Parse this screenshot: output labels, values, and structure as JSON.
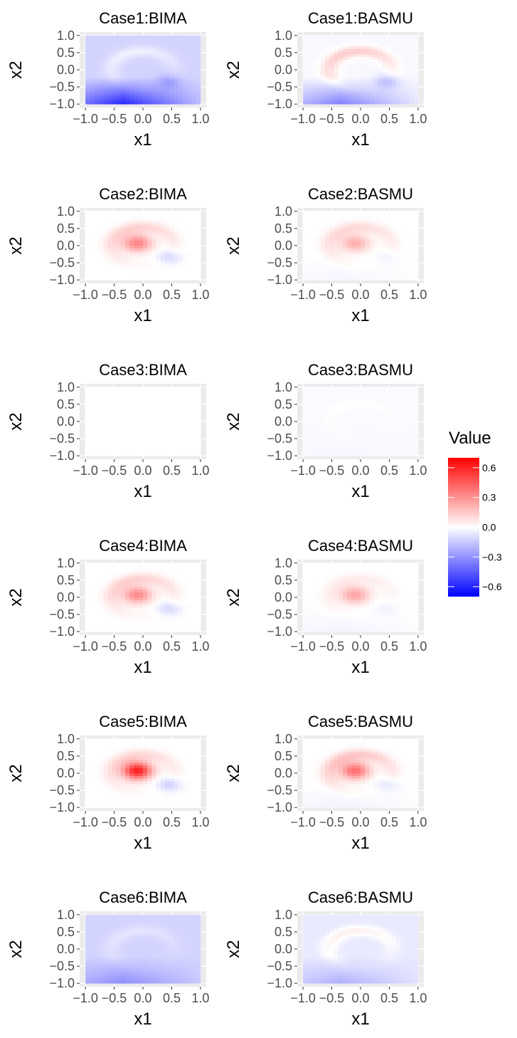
{
  "chart_data": {
    "type": "heatmap",
    "grid_type": "facet-grid",
    "rows": 6,
    "cols": 2,
    "xlim": [
      -1.1,
      1.1
    ],
    "ylim": [
      -1.1,
      1.1
    ],
    "x_ticks": [
      -1.0,
      -0.5,
      0.0,
      0.5,
      1.0
    ],
    "y_ticks": [
      -1.0,
      -0.5,
      0.0,
      0.5,
      1.0
    ],
    "x_tick_labels": [
      "−1.0",
      "−0.5",
      "0.0",
      "0.5",
      "1.0"
    ],
    "y_tick_labels": [
      "−1.0",
      "−0.5",
      "0.0",
      "0.5",
      "1.0"
    ],
    "xlabel": "x1",
    "ylabel": "x2",
    "legend": {
      "title": "Value",
      "position": "right",
      "limits": [
        -0.7,
        0.7
      ],
      "ticks": [
        0.6,
        0.3,
        0.0,
        -0.3,
        -0.6
      ],
      "tick_labels": [
        "0.6",
        "0.3",
        "0.0",
        "−0.3",
        "−0.6"
      ],
      "colors": {
        "low": "#0000ff",
        "mid": "#ffffff",
        "high": "#ff0000"
      }
    },
    "panels": [
      {
        "title": "Case1:BIMA",
        "ring": 0.08,
        "core": 0.0,
        "neg": 0.12,
        "base": -0.12,
        "grad": -0.55
      },
      {
        "title": "Case1:BASMU",
        "ring": 0.16,
        "core": 0.0,
        "neg": 0.15,
        "base": -0.02,
        "grad": -0.38
      },
      {
        "title": "Case2:BIMA",
        "ring": 0.12,
        "core": 0.34,
        "neg": 0.12,
        "base": 0.0,
        "grad": 0.0
      },
      {
        "title": "Case2:BASMU",
        "ring": 0.1,
        "core": 0.22,
        "neg": 0.04,
        "base": 0.0,
        "grad": -0.03
      },
      {
        "title": "Case3:BIMA",
        "ring": 0.0,
        "core": 0.0,
        "neg": 0.0,
        "base": 0.0,
        "grad": 0.0
      },
      {
        "title": "Case3:BASMU",
        "ring": 0.015,
        "core": 0.0,
        "neg": 0.0,
        "base": -0.015,
        "grad": -0.01
      },
      {
        "title": "Case4:BIMA",
        "ring": 0.12,
        "core": 0.32,
        "neg": 0.12,
        "base": 0.0,
        "grad": 0.0
      },
      {
        "title": "Case4:BASMU",
        "ring": 0.05,
        "core": 0.25,
        "neg": 0.04,
        "base": 0.0,
        "grad": -0.04
      },
      {
        "title": "Case5:BIMA",
        "ring": 0.1,
        "core": 0.62,
        "neg": 0.14,
        "base": 0.0,
        "grad": 0.0
      },
      {
        "title": "Case5:BASMU",
        "ring": 0.15,
        "core": 0.4,
        "neg": 0.08,
        "base": 0.0,
        "grad": -0.04
      },
      {
        "title": "Case6:BIMA",
        "ring": 0.05,
        "core": 0.0,
        "neg": 0.0,
        "base": -0.12,
        "grad": -0.22
      },
      {
        "title": "Case6:BASMU",
        "ring": 0.1,
        "core": 0.0,
        "neg": 0.0,
        "base": -0.06,
        "grad": -0.18
      }
    ]
  }
}
